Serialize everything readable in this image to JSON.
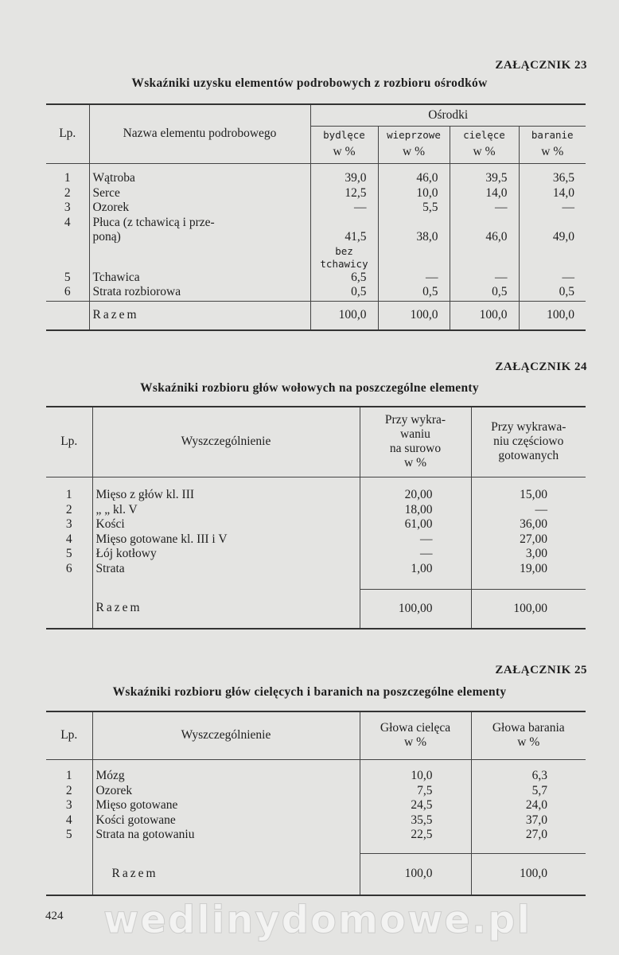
{
  "page_number": "424",
  "watermark": "wedlinydomowe.pl",
  "annex23": {
    "label": "ZAŁĄCZNIK 23",
    "title": "Wskaźniki uzysku elementów podrobowych z rozbioru ośrodków",
    "headers": {
      "lp": "Lp.",
      "name": "Nazwa elementu podrobowego",
      "group": "Ośrodki",
      "cols": [
        {
          "name": "bydlęce",
          "unit": "w %"
        },
        {
          "name": "wieprzowe",
          "unit": "w %"
        },
        {
          "name": "cielęce",
          "unit": "w %"
        },
        {
          "name": "baranie",
          "unit": "w %"
        }
      ]
    },
    "rows": [
      {
        "lp": "1",
        "name": "Wątroba",
        "values": [
          "39,0",
          "46,0",
          "39,5",
          "36,5"
        ]
      },
      {
        "lp": "2",
        "name": "Serce",
        "values": [
          "12,5",
          "10,0",
          "14,0",
          "14,0"
        ]
      },
      {
        "lp": "3",
        "name": "Ozorek",
        "values": [
          "—",
          "5,5",
          "—",
          "—"
        ]
      },
      {
        "lp": "4",
        "name": "Płuca (z tchawicą i prze-",
        "values": [
          "",
          "",
          "",
          ""
        ]
      },
      {
        "lp": "",
        "name": "poną)",
        "values": [
          "41,5",
          "38,0",
          "46,0",
          "49,0"
        ]
      },
      {
        "lp": "",
        "name": "",
        "values": [
          "bez",
          "",
          "",
          ""
        ],
        "note": true
      },
      {
        "lp": "",
        "name": "",
        "values": [
          "tchawicy",
          "",
          "",
          ""
        ],
        "note": true
      },
      {
        "lp": "5",
        "name": "Tchawica",
        "values": [
          "6,5",
          "—",
          "—",
          "—"
        ]
      },
      {
        "lp": "6",
        "name": "Strata rozbiorowa",
        "values": [
          "0,5",
          "0,5",
          "0,5",
          "0,5"
        ]
      }
    ],
    "total": {
      "label": "Razem",
      "values": [
        "100,0",
        "100,0",
        "100,0",
        "100,0"
      ]
    }
  },
  "annex24": {
    "label": "ZAŁĄCZNIK 24",
    "title": "Wskaźniki rozbioru głów wołowych na poszczególne elementy",
    "headers": {
      "lp": "Lp.",
      "name": "Wyszczególnienie",
      "cols": [
        "Przy wykra-\nwaniu\nna surowo\nw %",
        "Przy wykrawa-\nniu częściowo\ngotowanych"
      ]
    },
    "rows": [
      {
        "lp": "1",
        "name": "Mięso z głów kl. III",
        "values": [
          "20,00",
          "15,00"
        ]
      },
      {
        "lp": "2",
        "name": "„      „   kl. V",
        "values": [
          "18,00",
          "—"
        ]
      },
      {
        "lp": "3",
        "name": "Kości",
        "values": [
          "61,00",
          "36,00"
        ]
      },
      {
        "lp": "4",
        "name": "Mięso gotowane kl. III i V",
        "values": [
          "—",
          "27,00"
        ]
      },
      {
        "lp": "5",
        "name": "Łój kotłowy",
        "values": [
          "—",
          "3,00"
        ]
      },
      {
        "lp": "6",
        "name": "Strata",
        "values": [
          "1,00",
          "19,00"
        ]
      }
    ],
    "total": {
      "label": "Razem",
      "values": [
        "100,00",
        "100,00"
      ]
    }
  },
  "annex25": {
    "label": "ZAŁĄCZNIK 25",
    "title": "Wskaźniki rozbioru głów cielęcych i baranich na poszczególne elementy",
    "headers": {
      "lp": "Lp.",
      "name": "Wyszczególnienie",
      "cols": [
        "Głowa cielęca\nw %",
        "Głowa barania\nw %"
      ]
    },
    "rows": [
      {
        "lp": "1",
        "name": "Mózg",
        "values": [
          "10,0",
          "6,3"
        ]
      },
      {
        "lp": "2",
        "name": "Ozorek",
        "values": [
          "7,5",
          "5,7"
        ]
      },
      {
        "lp": "3",
        "name": "Mięso gotowane",
        "values": [
          "24,5",
          "24,0"
        ]
      },
      {
        "lp": "4",
        "name": "Kości gotowane",
        "values": [
          "35,5",
          "37,0"
        ]
      },
      {
        "lp": "5",
        "name": "Strata na gotowaniu",
        "values": [
          "22,5",
          "27,0"
        ]
      }
    ],
    "total": {
      "label": "Razem",
      "values": [
        "100,0",
        "100,0"
      ]
    }
  }
}
